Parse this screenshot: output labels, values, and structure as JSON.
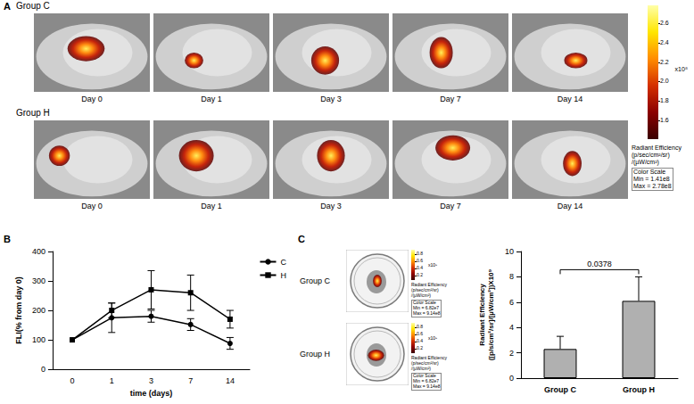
{
  "panel_a": {
    "letter": "A",
    "groups": [
      {
        "title": "Group C",
        "days": [
          "Day 0",
          "Day 1",
          "Day 3",
          "Day 7",
          "Day 14"
        ]
      },
      {
        "title": "Group H",
        "days": [
          "Day 0",
          "Day 1",
          "Day 3",
          "Day 7",
          "Day 14"
        ]
      }
    ],
    "color_bar": {
      "range": [
        1.41,
        2.78
      ],
      "ticks": [
        1.6,
        1.8,
        {
          "value": 2,
          "label": "2.0"
        },
        2.2,
        2.4,
        2.6
      ],
      "exponent_label": "x10⁸",
      "title": "Radiant Efficiency",
      "units": "(p/sec/cm²/sr)/(µW/cm²)",
      "scale_text": [
        "Color Scale",
        "Min = 1.41e8",
        "Max = 2.78e8"
      ]
    }
  },
  "chart_data": [
    {
      "type": "line",
      "letter": "B",
      "x_label": "time (days)",
      "y_label": "FLI(% from day 0)",
      "categories": [
        "0",
        "1",
        "3",
        "7",
        "14"
      ],
      "series": [
        {
          "name": "C",
          "color": "#000000",
          "marker": "circle",
          "values": [
            100,
            175,
            180,
            152,
            88
          ],
          "errors": [
            0,
            50,
            20,
            20,
            20
          ]
        },
        {
          "name": "H",
          "color": "#000000",
          "marker": "square",
          "values": [
            100,
            200,
            270,
            260,
            170
          ],
          "errors": [
            0,
            25,
            65,
            60,
            30
          ]
        }
      ],
      "ylim": [
        0,
        400
      ],
      "yticks": [
        0,
        100,
        200,
        300,
        400
      ],
      "grid": false,
      "legend": "right"
    },
    {
      "type": "bar",
      "y_label": "Radiant Efficiency ([p/s/cm²/sr]/[µW/cm²])X10⁹",
      "categories": [
        "Group C",
        "Group H"
      ],
      "values": [
        2.3,
        6.1
      ],
      "errors": [
        1.0,
        1.9
      ],
      "color": "#b0b0b0",
      "ylim": [
        0,
        10
      ],
      "yticks": [
        0,
        2,
        4,
        6,
        8,
        10
      ],
      "grid": false,
      "annotations": [
        {
          "text": "0.0378"
        }
      ]
    }
  ],
  "panel_c": {
    "letter": "C",
    "groups": [
      "Group C",
      "Group H"
    ],
    "color_bar": {
      "range": [
        0.0682,
        0.914
      ],
      "ticks": [
        0.2,
        0.4,
        0.6,
        0.8
      ],
      "exponent_label": "x10⁹",
      "title": "Radiant Efficiency",
      "units": "(p/sec/cm²/sr)/(µW/cm²)",
      "scale_text": [
        "Color Scale",
        "Min = 6.82e7",
        "Max = 9.14e8"
      ]
    }
  }
}
